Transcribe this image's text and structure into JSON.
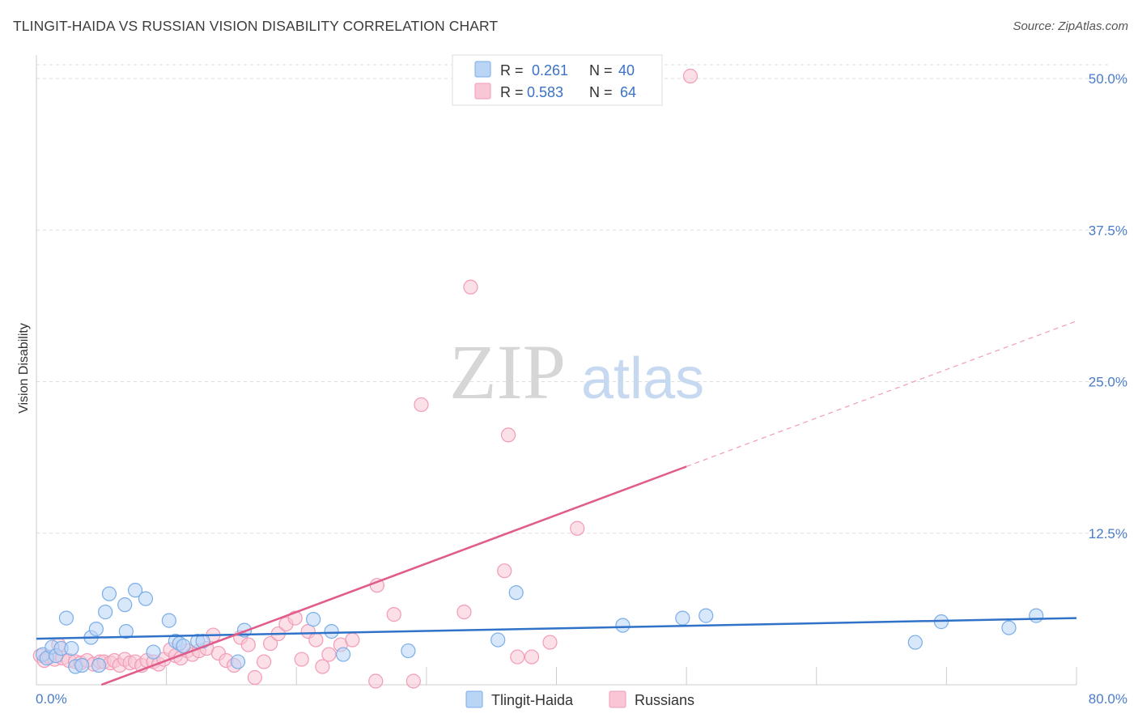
{
  "title": "TLINGIT-HAIDA VS RUSSIAN VISION DISABILITY CORRELATION CHART",
  "source": "Source: ZipAtlas.com",
  "watermark": {
    "zip": "ZIP",
    "atlas": "atlas"
  },
  "colors": {
    "tlingit": "#7aaee8",
    "tlingit_fill": "#b9d4f5",
    "tlingit_line": "#2f72c8",
    "russian": "#f29bb6",
    "russian_fill": "#f8c6d5",
    "russian_line": "#e05c8a",
    "axis_text": "#4a7cc9",
    "grid": "#dddddd"
  },
  "legend": {
    "r_label": "R =",
    "n_label": "N =",
    "tlingit_r": "0.261",
    "tlingit_n": "40",
    "russian_r": "0.583",
    "russian_n": "64"
  },
  "chart_data": {
    "type": "scatter",
    "xlabel": "",
    "ylabel": "Vision Disability",
    "xlim": [
      0,
      80
    ],
    "ylim": [
      0,
      52
    ],
    "x_tick_labels": [
      {
        "value": 0,
        "label": "0.0%"
      },
      {
        "value": 80,
        "label": "80.0%"
      }
    ],
    "y_tick_labels": [
      {
        "value": 12.5,
        "label": "12.5%"
      },
      {
        "value": 25,
        "label": "25.0%"
      },
      {
        "value": 37.5,
        "label": "37.5%"
      },
      {
        "value": 50,
        "label": "50.0%"
      }
    ],
    "series": [
      {
        "name": "Tlingit-Haida",
        "points": [
          [
            0.5,
            2.5
          ],
          [
            0.8,
            2.2
          ],
          [
            1.2,
            3.1
          ],
          [
            1.5,
            2.4
          ],
          [
            1.9,
            3.0
          ],
          [
            2.3,
            5.5
          ],
          [
            2.7,
            3.0
          ],
          [
            3.0,
            1.5
          ],
          [
            3.5,
            1.6
          ],
          [
            4.2,
            3.9
          ],
          [
            4.6,
            4.6
          ],
          [
            4.8,
            1.6
          ],
          [
            5.3,
            6.0
          ],
          [
            5.6,
            7.5
          ],
          [
            6.8,
            6.6
          ],
          [
            6.9,
            4.4
          ],
          [
            7.6,
            7.8
          ],
          [
            8.4,
            7.1
          ],
          [
            9.0,
            2.7
          ],
          [
            10.2,
            5.3
          ],
          [
            10.7,
            3.6
          ],
          [
            11.0,
            3.4
          ],
          [
            11.3,
            3.2
          ],
          [
            12.4,
            3.6
          ],
          [
            12.8,
            3.6
          ],
          [
            15.5,
            1.9
          ],
          [
            16.0,
            4.5
          ],
          [
            21.3,
            5.4
          ],
          [
            22.7,
            4.4
          ],
          [
            23.6,
            2.5
          ],
          [
            28.6,
            2.8
          ],
          [
            35.5,
            3.7
          ],
          [
            36.9,
            7.6
          ],
          [
            45.1,
            4.9
          ],
          [
            49.7,
            5.5
          ],
          [
            51.5,
            5.7
          ],
          [
            67.6,
            3.5
          ],
          [
            69.6,
            5.2
          ],
          [
            74.8,
            4.7
          ],
          [
            76.9,
            5.7
          ]
        ],
        "trend": {
          "x": [
            0,
            80
          ],
          "y": [
            3.8,
            5.5
          ]
        }
      },
      {
        "name": "Russians",
        "points": [
          [
            0.3,
            2.4
          ],
          [
            0.6,
            2.0
          ],
          [
            1.0,
            2.3
          ],
          [
            1.4,
            2.1
          ],
          [
            1.7,
            3.3
          ],
          [
            2.0,
            2.2
          ],
          [
            2.5,
            2.0
          ],
          [
            3.0,
            1.9
          ],
          [
            3.4,
            1.8
          ],
          [
            3.9,
            2.0
          ],
          [
            4.4,
            1.7
          ],
          [
            4.9,
            1.9
          ],
          [
            5.2,
            1.9
          ],
          [
            5.7,
            1.8
          ],
          [
            6.0,
            2.0
          ],
          [
            6.4,
            1.6
          ],
          [
            6.8,
            2.1
          ],
          [
            7.2,
            1.8
          ],
          [
            7.6,
            1.9
          ],
          [
            8.1,
            1.6
          ],
          [
            8.5,
            2.0
          ],
          [
            9.0,
            1.9
          ],
          [
            9.4,
            1.7
          ],
          [
            9.8,
            2.1
          ],
          [
            10.3,
            2.9
          ],
          [
            10.7,
            2.4
          ],
          [
            11.1,
            2.2
          ],
          [
            11.6,
            2.8
          ],
          [
            12.0,
            2.5
          ],
          [
            12.5,
            2.8
          ],
          [
            13.1,
            3.0
          ],
          [
            13.6,
            4.1
          ],
          [
            14.0,
            2.6
          ],
          [
            14.6,
            2.0
          ],
          [
            15.2,
            1.6
          ],
          [
            15.7,
            3.9
          ],
          [
            16.3,
            3.3
          ],
          [
            16.8,
            0.6
          ],
          [
            17.5,
            1.9
          ],
          [
            18.0,
            3.4
          ],
          [
            18.6,
            4.2
          ],
          [
            19.2,
            5.0
          ],
          [
            19.9,
            5.5
          ],
          [
            20.4,
            2.1
          ],
          [
            20.9,
            4.4
          ],
          [
            21.5,
            3.7
          ],
          [
            22.0,
            1.5
          ],
          [
            22.5,
            2.5
          ],
          [
            23.4,
            3.3
          ],
          [
            24.3,
            3.7
          ],
          [
            26.2,
            8.2
          ],
          [
            26.1,
            0.3
          ],
          [
            27.5,
            5.8
          ],
          [
            29.0,
            0.3
          ],
          [
            29.6,
            23.1
          ],
          [
            32.9,
            6.0
          ],
          [
            33.4,
            32.8
          ],
          [
            36.0,
            9.4
          ],
          [
            36.3,
            20.6
          ],
          [
            37.0,
            2.3
          ],
          [
            38.1,
            2.3
          ],
          [
            39.5,
            3.5
          ],
          [
            41.6,
            12.9
          ],
          [
            50.3,
            50.2
          ]
        ],
        "trend": {
          "x": [
            5,
            50
          ],
          "y": [
            0,
            18
          ]
        },
        "trend_extension": {
          "x": [
            50,
            80
          ],
          "y": [
            18,
            30
          ]
        }
      }
    ]
  },
  "bottom_legend": [
    {
      "name": "Tlingit-Haida"
    },
    {
      "name": "Russians"
    }
  ]
}
